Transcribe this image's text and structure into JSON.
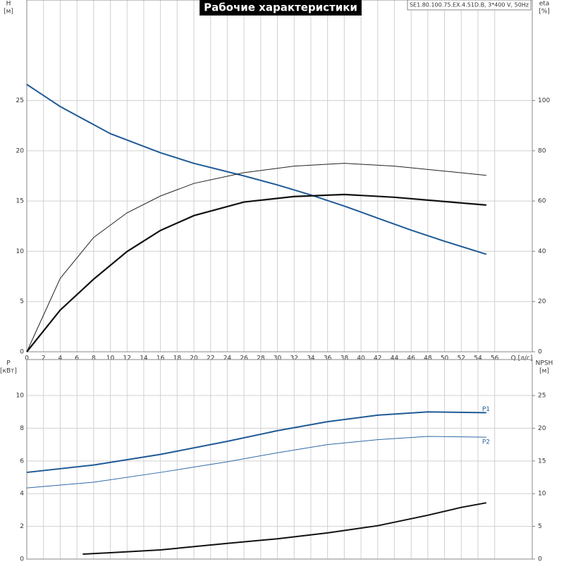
{
  "chart_data": [
    {
      "type": "line",
      "title": "Рабочие характеристики",
      "subtitle": "SE1.80.100.75.EX.4.51D.B, 3*400 V, 50Hz",
      "ylabel": "H",
      "yunit": "[м]",
      "y2label": "eta",
      "y2unit": "[%]",
      "xlabel": "Q [л/с]",
      "xlim": [
        0,
        60.5
      ],
      "xticks": [
        0,
        2,
        4,
        6,
        8,
        10,
        12,
        14,
        16,
        18,
        20,
        22,
        24,
        26,
        28,
        30,
        32,
        34,
        36,
        38,
        40,
        42,
        44,
        46,
        48,
        50,
        52,
        54,
        56
      ],
      "show_xtick_labels": true,
      "ylim": [
        0,
        35
      ],
      "yticks": [
        0,
        5,
        10,
        15,
        20,
        25
      ],
      "y2lim": [
        0,
        140
      ],
      "y2ticks": [
        0,
        20,
        40,
        60,
        80,
        100
      ],
      "grid": true,
      "series": [
        {
          "color": "#1f5a96",
          "line_width": 2,
          "x": [
            0,
            2,
            4,
            6,
            10,
            16,
            20,
            26,
            30,
            34,
            38,
            42,
            46,
            50,
            55
          ],
          "values": [
            26.6,
            25.5,
            24.4,
            23.5,
            21.7,
            19.8,
            18.75,
            17.5,
            16.6,
            15.6,
            14.5,
            13.3,
            12.1,
            11.0,
            9.7
          ]
        },
        {
          "color": "#222222",
          "line_width": 1,
          "axis": "y2",
          "x": [
            0,
            4,
            8,
            12,
            16,
            20,
            26,
            32,
            38,
            44,
            50,
            55
          ],
          "values": [
            0,
            29.2,
            45.5,
            55.3,
            62,
            67,
            71.3,
            73.9,
            75,
            73.9,
            71.9,
            70.2
          ]
        },
        {
          "color": "#111111",
          "line_width": 2.2,
          "axis": "y2",
          "x": [
            0,
            4,
            8,
            12,
            16,
            20,
            26,
            32,
            38,
            44,
            50,
            55
          ],
          "values": [
            0,
            16.6,
            28.9,
            39.9,
            48.3,
            54.2,
            59.6,
            61.8,
            62.6,
            61.5,
            59.8,
            58.4
          ]
        }
      ]
    },
    {
      "type": "line",
      "ylabel": "P",
      "yunit": "[кВт]",
      "y2label": "NPSH",
      "y2unit": "[м]",
      "xlim": [
        0,
        60.5
      ],
      "xticks": [
        0,
        2,
        4,
        6,
        8,
        10,
        12,
        14,
        16,
        18,
        20,
        22,
        24,
        26,
        28,
        30,
        32,
        34,
        36,
        38,
        40,
        42,
        44,
        46,
        48,
        50,
        52,
        54,
        56
      ],
      "show_xtick_labels": false,
      "ylim": [
        0,
        12.2
      ],
      "yticks": [
        0,
        2,
        4,
        6,
        8,
        10
      ],
      "y2lim": [
        0,
        30.5
      ],
      "y2ticks": [
        0,
        5,
        10,
        15,
        20,
        25
      ],
      "grid": true,
      "series": [
        {
          "name": "P1",
          "color": "#1f5a96",
          "line_width": 2,
          "x": [
            0,
            8,
            16,
            24,
            30,
            36,
            42,
            48,
            55
          ],
          "values": [
            5.3,
            5.75,
            6.4,
            7.2,
            7.85,
            8.4,
            8.8,
            9.0,
            8.95
          ]
        },
        {
          "name": "P2",
          "color": "#2f6aa6",
          "line_width": 1,
          "x": [
            0,
            8,
            16,
            24,
            30,
            36,
            42,
            48,
            55
          ],
          "values": [
            4.35,
            4.7,
            5.3,
            5.95,
            6.5,
            7.0,
            7.3,
            7.5,
            7.45
          ]
        },
        {
          "color": "#111111",
          "line_width": 2,
          "axis": "y2",
          "x": [
            6.7,
            10,
            16,
            24,
            30,
            36,
            42,
            48,
            52,
            55
          ],
          "values": [
            0.75,
            0.97,
            1.4,
            2.4,
            3.1,
            4.0,
            5.1,
            6.7,
            7.9,
            8.6
          ]
        }
      ]
    }
  ]
}
